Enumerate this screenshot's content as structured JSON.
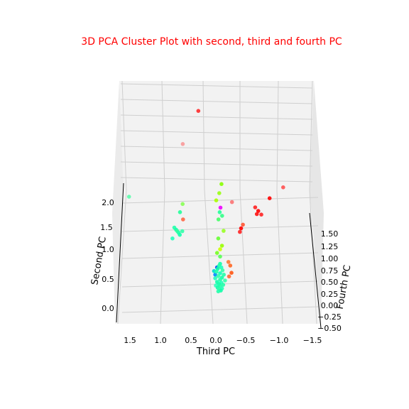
{
  "chart_data": {
    "type": "scatter",
    "title": "3D PCA Cluster Plot with second, third and fourth PC",
    "title_color": "#ff0000",
    "xlabel": "Third PC",
    "ylabel": "Second PC",
    "zlabel": "Fourth PC",
    "x_ticks": [
      "1.5",
      "1.0",
      "0.5",
      "0.0",
      "−0.5",
      "−1.0",
      "−1.5"
    ],
    "y_ticks": [
      "0.0",
      "0.5",
      "1.0",
      "1.5",
      "2.0"
    ],
    "z_ticks": [
      "−0.50",
      "−0.25",
      "0.00",
      "0.25",
      "0.50",
      "0.75",
      "1.00",
      "1.25",
      "1.50"
    ],
    "grid": true,
    "colormap": "hsv",
    "points": [
      {
        "x": 0.05,
        "y": 2.3,
        "z": 2.2,
        "color": "#ff2020",
        "alpha": 0.85
      },
      {
        "x": 0.5,
        "y": 2.2,
        "z": 0.8,
        "color": "#ff4040",
        "alpha": 0.45
      },
      {
        "x": 1.45,
        "y": 1.6,
        "z": 0.3,
        "color": "#33ff99",
        "alpha": 0.7
      },
      {
        "x": -0.25,
        "y": 1.5,
        "z": 0.4,
        "color": "#ff5050",
        "alpha": 0.7
      },
      {
        "x": -0.05,
        "y": 1.8,
        "z": 0.2,
        "color": "#88ff00"
      },
      {
        "x": 0.0,
        "y": 1.7,
        "z": 0.1,
        "color": "#99ff11"
      },
      {
        "x": 0.05,
        "y": 1.6,
        "z": 0.1,
        "color": "#aaff00"
      },
      {
        "x": -0.02,
        "y": 1.5,
        "z": 0.1,
        "color": "#ee00ff"
      },
      {
        "x": 0.0,
        "y": 1.45,
        "z": 0.05,
        "color": "#22ff99"
      },
      {
        "x": -0.04,
        "y": 1.4,
        "z": 0.05,
        "color": "#33ff88"
      },
      {
        "x": 0.02,
        "y": 1.35,
        "z": 0.05,
        "color": "#44ff66"
      },
      {
        "x": -0.06,
        "y": 1.2,
        "z": 0.02,
        "color": "#99ff22"
      },
      {
        "x": 0.03,
        "y": 1.1,
        "z": 0.0,
        "color": "#66ff33"
      },
      {
        "x": -0.03,
        "y": 1.0,
        "z": 0.0,
        "color": "#99ff00"
      },
      {
        "x": 0.0,
        "y": 0.95,
        "z": 0.0,
        "color": "#ccff00"
      },
      {
        "x": 0.05,
        "y": 0.9,
        "z": 0.0,
        "color": "#77ff22"
      },
      {
        "x": 0.0,
        "y": 0.85,
        "z": 0.0,
        "color": "#55ff55"
      },
      {
        "x": 0.6,
        "y": 1.55,
        "z": 0.1,
        "color": "#88ff55"
      },
      {
        "x": 0.65,
        "y": 1.45,
        "z": 0.05,
        "color": "#22ff99"
      },
      {
        "x": 0.6,
        "y": 1.35,
        "z": 0.05,
        "color": "#ff6644"
      },
      {
        "x": 0.75,
        "y": 1.25,
        "z": 0.0,
        "color": "#22ffaa"
      },
      {
        "x": 0.72,
        "y": 1.22,
        "z": 0.0,
        "color": "#11ffaa"
      },
      {
        "x": 0.7,
        "y": 1.2,
        "z": 0.0,
        "color": "#33ff99"
      },
      {
        "x": 0.68,
        "y": 1.18,
        "z": 0.0,
        "color": "#22ffaa"
      },
      {
        "x": 0.66,
        "y": 1.15,
        "z": 0.0,
        "color": "#11ffaa"
      },
      {
        "x": 0.62,
        "y": 1.2,
        "z": 0.0,
        "color": "#33ffaa"
      },
      {
        "x": 0.78,
        "y": 1.1,
        "z": 0.0,
        "color": "#22ffbb"
      },
      {
        "x": -0.7,
        "y": 1.3,
        "z": 0.9,
        "color": "#ff2020"
      },
      {
        "x": -0.75,
        "y": 1.25,
        "z": 0.9,
        "color": "#ff0000"
      },
      {
        "x": -0.72,
        "y": 1.22,
        "z": 0.85,
        "color": "#ff1111"
      },
      {
        "x": -0.8,
        "y": 1.2,
        "z": 0.9,
        "color": "#ff2222"
      },
      {
        "x": -0.95,
        "y": 1.4,
        "z": 1.0,
        "color": "#ff0000"
      },
      {
        "x": -1.2,
        "y": 1.5,
        "z": 1.2,
        "color": "#ff5050"
      },
      {
        "x": -0.45,
        "y": 1.15,
        "z": 0.55,
        "color": "#ff5533"
      },
      {
        "x": -0.42,
        "y": 1.1,
        "z": 0.55,
        "color": "#ff0000"
      },
      {
        "x": -0.4,
        "y": 1.05,
        "z": 0.55,
        "color": "#ff2222"
      },
      {
        "x": -0.15,
        "y": 0.75,
        "z": 0.1,
        "color": "#ff7733"
      },
      {
        "x": -0.18,
        "y": 0.7,
        "z": 0.1,
        "color": "#ff6622"
      },
      {
        "x": -0.2,
        "y": 0.6,
        "z": 0.1,
        "color": "#ff5511"
      },
      {
        "x": -0.16,
        "y": 0.55,
        "z": 0.1,
        "color": "#ff6633"
      },
      {
        "x": 0.05,
        "y": 0.7,
        "z": 0.0,
        "color": "#0044ff"
      },
      {
        "x": 0.1,
        "y": 0.65,
        "z": 0.0,
        "color": "#00ddcc"
      },
      {
        "x": 0.08,
        "y": 0.6,
        "z": 0.0,
        "color": "#0088ff"
      },
      {
        "x": 0.0,
        "y": 0.75,
        "z": 0.0,
        "color": "#11ffaa"
      },
      {
        "x": 0.02,
        "y": 0.72,
        "z": 0.0,
        "color": "#22ffaa"
      },
      {
        "x": -0.02,
        "y": 0.7,
        "z": 0.0,
        "color": "#22ffbb"
      },
      {
        "x": 0.04,
        "y": 0.68,
        "z": 0.0,
        "color": "#11ffaa"
      },
      {
        "x": -0.04,
        "y": 0.66,
        "z": 0.0,
        "color": "#33ffaa"
      },
      {
        "x": 0.06,
        "y": 0.64,
        "z": 0.0,
        "color": "#22ffaa"
      },
      {
        "x": 0.0,
        "y": 0.62,
        "z": 0.0,
        "color": "#11ffbb"
      },
      {
        "x": -0.06,
        "y": 0.6,
        "z": 0.0,
        "color": "#22ffaa"
      },
      {
        "x": 0.03,
        "y": 0.58,
        "z": 0.0,
        "color": "#33ffaa"
      },
      {
        "x": -0.03,
        "y": 0.56,
        "z": 0.0,
        "color": "#11ffaa"
      },
      {
        "x": 0.08,
        "y": 0.55,
        "z": 0.0,
        "color": "#22ffbb"
      },
      {
        "x": 0.0,
        "y": 0.53,
        "z": 0.0,
        "color": "#22ffaa"
      },
      {
        "x": -0.08,
        "y": 0.52,
        "z": 0.0,
        "color": "#33ffaa"
      },
      {
        "x": 0.05,
        "y": 0.5,
        "z": 0.0,
        "color": "#11ffaa"
      },
      {
        "x": -0.02,
        "y": 0.49,
        "z": 0.0,
        "color": "#22ffbb"
      },
      {
        "x": 0.02,
        "y": 0.47,
        "z": 0.0,
        "color": "#11ffaa"
      },
      {
        "x": -0.05,
        "y": 0.46,
        "z": 0.0,
        "color": "#22ffaa"
      },
      {
        "x": 0.07,
        "y": 0.45,
        "z": 0.0,
        "color": "#33ffbb"
      },
      {
        "x": 0.0,
        "y": 0.44,
        "z": 0.0,
        "color": "#22ffaa"
      },
      {
        "x": 0.04,
        "y": 0.42,
        "z": 0.0,
        "color": "#11ffaa"
      },
      {
        "x": -0.03,
        "y": 0.41,
        "z": 0.0,
        "color": "#22ffbb"
      },
      {
        "x": 0.01,
        "y": 0.4,
        "z": 0.0,
        "color": "#33ffaa"
      },
      {
        "x": -0.01,
        "y": 0.38,
        "z": 0.0,
        "color": "#11ffaa"
      },
      {
        "x": 0.03,
        "y": 0.37,
        "z": 0.0,
        "color": "#22ffaa"
      }
    ]
  }
}
